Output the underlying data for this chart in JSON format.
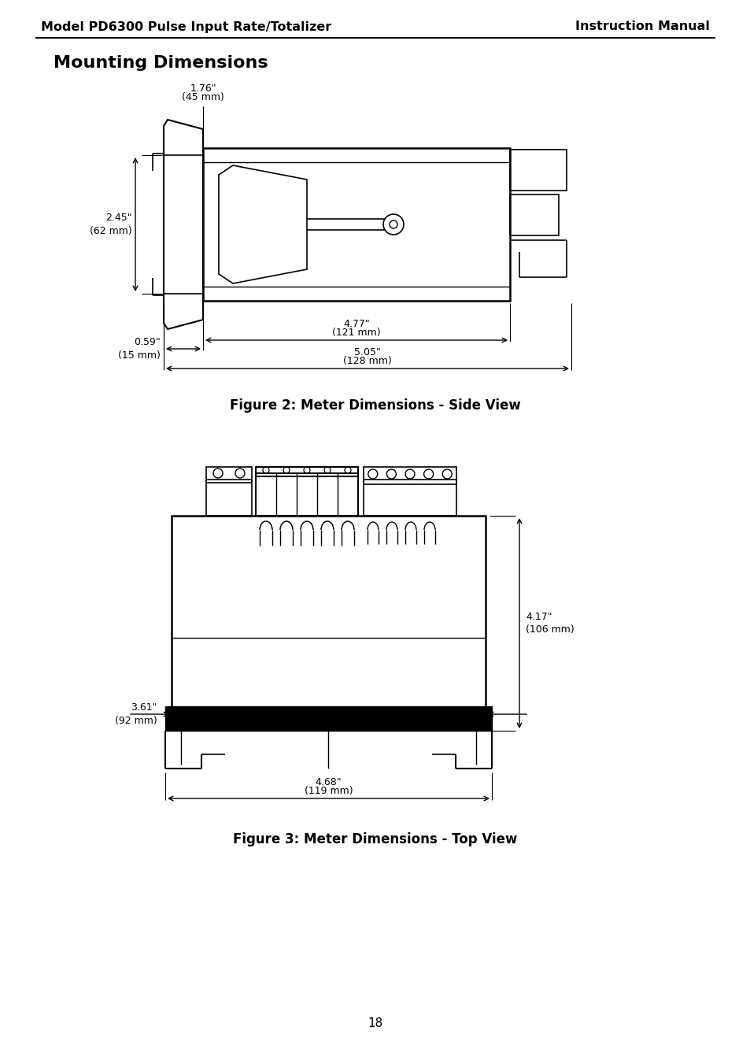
{
  "header_left": "Model PD6300 Pulse Input Rate/Totalizer",
  "header_right": "Instruction Manual",
  "section_title": "Mounting Dimensions",
  "fig2_caption": "Figure 2: Meter Dimensions - Side View",
  "fig3_caption": "Figure 3: Meter Dimensions - Top View",
  "page_number": "18",
  "bg_color": "#ffffff",
  "line_color": "#000000"
}
